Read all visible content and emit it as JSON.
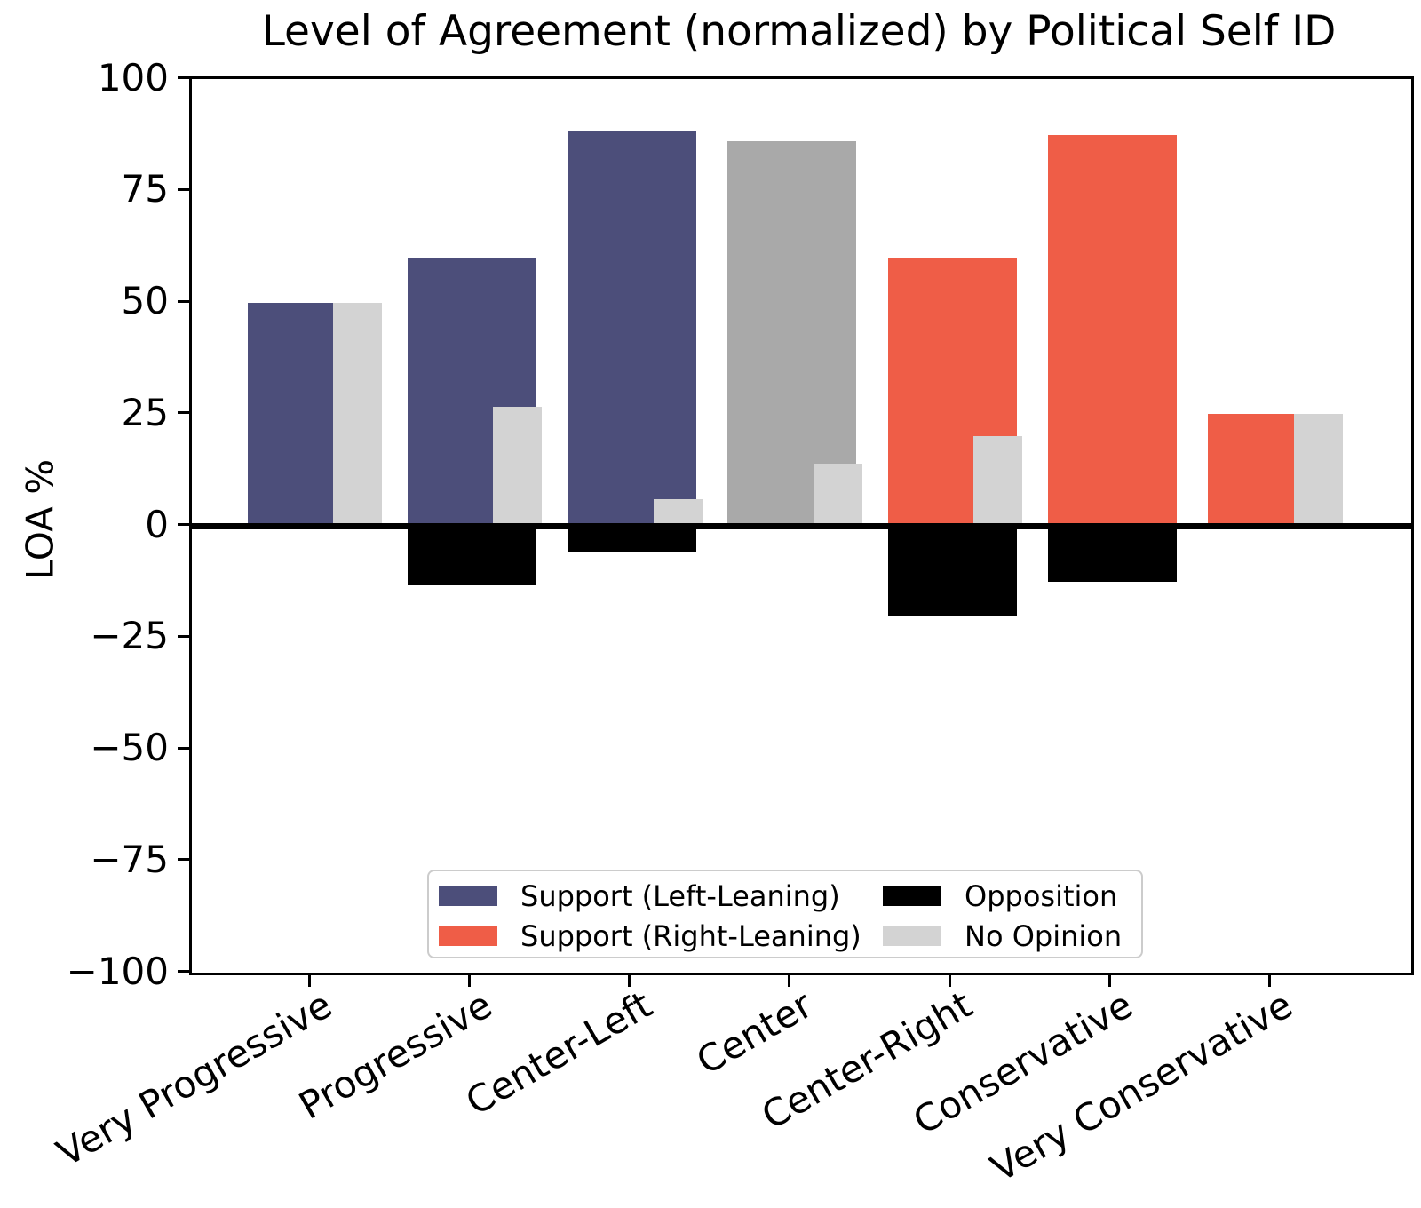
{
  "chart_data": {
    "type": "bar",
    "title": "Level of Agreement (normalized) by Political Self ID",
    "xlabel": "",
    "ylabel": "LOA %",
    "categories": [
      "Very Progressive",
      "Progressive",
      "Center-Left",
      "Center",
      "Center-Right",
      "Conservative",
      "Very Conservative"
    ],
    "series": [
      {
        "name": "Support",
        "values": [
          50,
          60,
          88.2,
          86,
          60,
          87.5,
          25
        ],
        "bar_colors": [
          "#4C4E7A",
          "#4C4E7A",
          "#4C4E7A",
          "#A9A9A9",
          "#EF5D47",
          "#EF5D47",
          "#EF5D47"
        ],
        "note": "support bar color encodes leaning: left=dark blue, center=dark gray, right=tomato"
      },
      {
        "name": "Opposition",
        "values": [
          0,
          -13.3,
          -5.9,
          0,
          -20,
          -12.5,
          0
        ],
        "bar_colors": [
          "#000000",
          "#000000",
          "#000000",
          "#000000",
          "#000000",
          "#000000",
          "#000000"
        ]
      },
      {
        "name": "No Opinion",
        "values": [
          50,
          26.7,
          5.9,
          14,
          20,
          0,
          25
        ],
        "bar_colors": [
          "#D3D3D3",
          "#D3D3D3",
          "#D3D3D3",
          "#D3D3D3",
          "#D3D3D3",
          "#D3D3D3",
          "#D3D3D3"
        ]
      }
    ],
    "ylim": [
      -100,
      100
    ],
    "ytick_values": [
      100,
      75,
      50,
      25,
      0,
      -25,
      -50,
      -75,
      -100
    ],
    "ytick_labels": [
      "100",
      "75",
      "50",
      "25",
      "0",
      "−25",
      "−50",
      "−75",
      "−100"
    ],
    "grid": false,
    "zero_line": true,
    "legend_position": "lower center"
  },
  "header": {
    "title": "Level of Agreement (normalized) by Political Self ID"
  },
  "axes": {
    "ylabel": "LOA %"
  },
  "legend": {
    "entries": [
      {
        "label": "Support (Left-Leaning)",
        "color": "#4C4E7A"
      },
      {
        "label": "Support (Right-Leaning)",
        "color": "#EF5D47"
      },
      {
        "label": "Opposition",
        "color": "#000000"
      },
      {
        "label": "No Opinion",
        "color": "#D3D3D3"
      }
    ]
  },
  "colors": {
    "support_left": "#4C4E7A",
    "support_right": "#EF5D47",
    "support_center": "#A9A9A9",
    "opposition": "#000000",
    "no_opinion": "#D3D3D3",
    "axis": "#000000",
    "background": "#FFFFFF",
    "legend_border": "#CCCCCC"
  }
}
